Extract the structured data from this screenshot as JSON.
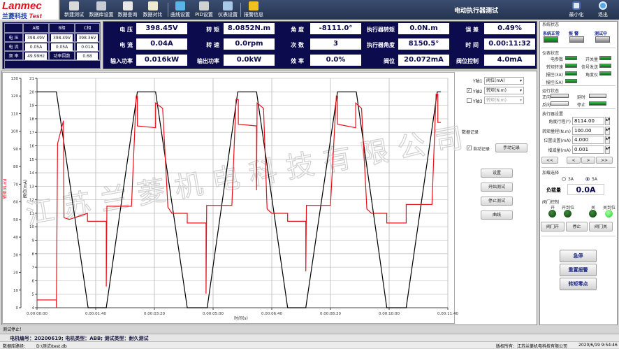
{
  "logo": {
    "brand": "Lanmec",
    "reg": "®",
    "cn": "兰菱科技",
    "test": "Test"
  },
  "toolbar": {
    "items": [
      {
        "label": "新建测试",
        "icon": "new-test-icon",
        "color": "#d8d8d8"
      },
      {
        "label": "数据库设置",
        "icon": "database-settings-icon",
        "color": "#c8ccd4"
      },
      {
        "label": "数据查询",
        "icon": "data-query-icon",
        "color": "#e8e8e8"
      },
      {
        "label": "数据对比",
        "icon": "data-compare-icon",
        "color": "#f0e8d0"
      },
      {
        "label": "曲线设置",
        "icon": "curve-settings-icon",
        "color": "#5ab4e8"
      },
      {
        "label": "PID设置",
        "icon": "pid-settings-icon",
        "color": "#d0d0d0"
      },
      {
        "label": "仪表设置",
        "icon": "meter-settings-icon",
        "color": "#a8c8e8"
      },
      {
        "label": "报警信息",
        "icon": "alarm-warning-icon",
        "color": "#f0c020"
      }
    ]
  },
  "app_title": "电动执行器测试",
  "window": {
    "minimize": "最小化",
    "exit": "退出"
  },
  "phase_table": {
    "headers": [
      "A相",
      "B相",
      "C相"
    ],
    "rows": [
      {
        "label": "电 压",
        "values": [
          "398.49V",
          "398.49V",
          "398.36V"
        ]
      },
      {
        "label": "电 流",
        "values": [
          "0.05A",
          "0.05A",
          "0.01A"
        ]
      },
      {
        "label": "频 率",
        "values": [
          "49.99Hz",
          "功率因数",
          "0.68"
        ]
      }
    ]
  },
  "metrics": [
    [
      {
        "label": "电 压",
        "value": "398.45V"
      },
      {
        "label": "转 矩",
        "value": "8.0852N.m"
      },
      {
        "label": "角 度",
        "value": "-8111.0°"
      },
      {
        "label": "执行器转矩",
        "value": "0.0N.m"
      },
      {
        "label": "误 差",
        "value": "0.49%"
      }
    ],
    [
      {
        "label": "电 流",
        "value": "0.04A"
      },
      {
        "label": "转 速",
        "value": "0.0rpm"
      },
      {
        "label": "次 数",
        "value": "3"
      },
      {
        "label": "执行器角度",
        "value": "8150.5°"
      },
      {
        "label": "时 间",
        "value": "0.00:11:32"
      }
    ],
    [
      {
        "label": "输入功率",
        "value": "0.016kW"
      },
      {
        "label": "输出功率",
        "value": "0.0kW"
      },
      {
        "label": "效 率",
        "value": "0.0%"
      },
      {
        "label": "阀位",
        "value": "20.072mA"
      },
      {
        "label": "阀位控制",
        "value": "4.0mA"
      }
    ]
  ],
  "chart_controls": {
    "y1": {
      "label": "Y轴1",
      "value": "阀位(mA)"
    },
    "y2": {
      "label": "Y轴2",
      "value": "转矩(N.m)",
      "checked": true
    },
    "y3": {
      "label": "Y轴3",
      "value": "转矩(N.m)",
      "checked": false
    },
    "record_title": "数据记录",
    "auto_record": "自动记录",
    "auto_checked": true,
    "manual_record": "手动记录",
    "buttons": [
      "设置",
      "开始测试",
      "停止测试",
      "曲线"
    ]
  },
  "chart_data": {
    "type": "line",
    "xlabel": "时间(s)",
    "xlim": [
      0,
      700
    ],
    "xticks": [
      0,
      100,
      200,
      300,
      400,
      500,
      600,
      700
    ],
    "xtick_labels": [
      "0.00:00:00",
      "0.00:01:40",
      "0.00:03:20",
      "0.00:05:00",
      "0.00:06:40",
      "0.00:08:20",
      "0.00:10:00",
      "0.00:11:40"
    ],
    "grid": true,
    "axes": [
      {
        "label": "转矩(N.m)",
        "color": "#e8101a",
        "ylim": [
          0,
          130
        ],
        "ticks": [
          0,
          10,
          20,
          30,
          40,
          50,
          60,
          70,
          80,
          90,
          100,
          110,
          120,
          130
        ]
      },
      {
        "label": "阀位(mA)",
        "color": "#000000",
        "ylim": [
          4,
          21
        ],
        "ticks": [
          4,
          5,
          6,
          7,
          8,
          9,
          10,
          11,
          12,
          13,
          14,
          15,
          16,
          17,
          18,
          19,
          20,
          21
        ]
      }
    ],
    "series": [
      {
        "axis": 1,
        "color": "#000000",
        "points": [
          [
            0,
            20
          ],
          [
            33,
            20
          ],
          [
            87,
            4
          ],
          [
            118,
            4
          ],
          [
            171,
            20
          ],
          [
            202,
            20
          ],
          [
            256,
            4
          ],
          [
            290,
            4
          ],
          [
            342,
            20
          ],
          [
            374,
            20
          ],
          [
            427,
            4
          ],
          [
            458,
            4
          ],
          [
            512,
            20
          ],
          [
            544,
            20
          ],
          [
            596,
            4
          ],
          [
            629,
            4
          ],
          [
            682,
            20
          ],
          [
            688,
            20
          ]
        ]
      },
      {
        "axis": 0,
        "color": "#e8101a",
        "points": [
          [
            0,
            4.4
          ],
          [
            33,
            4.4
          ],
          [
            33,
            0
          ],
          [
            35,
            93
          ],
          [
            45,
            106
          ],
          [
            46,
            51
          ],
          [
            55,
            50
          ],
          [
            86,
            53.5
          ],
          [
            86,
            49
          ],
          [
            118,
            49
          ],
          [
            118,
            12
          ],
          [
            119,
            57.5
          ],
          [
            161,
            57.5
          ],
          [
            169,
            120
          ],
          [
            171,
            120
          ],
          [
            171,
            103
          ],
          [
            202,
            102
          ],
          [
            202,
            116
          ],
          [
            214,
            113
          ],
          [
            223,
            57
          ],
          [
            230,
            53.5
          ],
          [
            256,
            53.5
          ],
          [
            256,
            48
          ],
          [
            288,
            48
          ],
          [
            288,
            8
          ],
          [
            289,
            58
          ],
          [
            332,
            58
          ],
          [
            339,
            118
          ],
          [
            343,
            118
          ],
          [
            343,
            104
          ],
          [
            374,
            103
          ],
          [
            374,
            66.6
          ],
          [
            375,
            116
          ],
          [
            386,
            113
          ],
          [
            392,
            56
          ],
          [
            400,
            53.5
          ],
          [
            427,
            53.5
          ],
          [
            427,
            49
          ],
          [
            458,
            49
          ],
          [
            458,
            20.6
          ],
          [
            459,
            58
          ],
          [
            500,
            58
          ],
          [
            510,
            120
          ],
          [
            512,
            120
          ],
          [
            512,
            104
          ],
          [
            543,
            102
          ],
          [
            543,
            116
          ],
          [
            553,
            113
          ],
          [
            562,
            56
          ],
          [
            570,
            53.5
          ],
          [
            596,
            53.5
          ],
          [
            596,
            48
          ],
          [
            629,
            48
          ],
          [
            629,
            58.5
          ],
          [
            673,
            58.5
          ],
          [
            680,
            121
          ],
          [
            683,
            121
          ],
          [
            683,
            105
          ],
          [
            688,
            105
          ]
        ]
      }
    ]
  },
  "watermark": "江苏兰菱机电科技有限公司",
  "right_panel": {
    "system_status": {
      "title": "系统状态",
      "items": [
        {
          "label": "系统正常",
          "on": true
        },
        {
          "label": "报 警",
          "on": false
        },
        {
          "label": "测试中",
          "on": false
        }
      ]
    },
    "meter_status": {
      "title": "仪表状态",
      "items": [
        {
          "label": "电参数",
          "on": true
        },
        {
          "label": "开关量",
          "on": true
        },
        {
          "label": "转矩转速",
          "on": true
        },
        {
          "label": "信号发送",
          "on": true
        },
        {
          "label": "报控(3A)",
          "on": true
        },
        {
          "label": "角度仪",
          "on": true
        },
        {
          "label": "报控(5A)",
          "on": true
        }
      ]
    },
    "run_status": {
      "title": "运行状态",
      "items": [
        {
          "label": "正向",
          "on": false
        },
        {
          "label": "延时",
          "on": false
        },
        {
          "label": "反向",
          "on": false
        },
        {
          "label": "停止",
          "on": true
        }
      ]
    },
    "actuator": {
      "title": "执行器设置",
      "fields": [
        {
          "label": "角度行程(°)",
          "value": "8114.00"
        },
        {
          "label": "转矩量程(N.m)",
          "value": "100.00"
        },
        {
          "label": "位置设置(mA)",
          "value": "4.000"
        },
        {
          "label": "增减量(mA)",
          "value": "0.001"
        }
      ],
      "nav": [
        "<<",
        "<",
        ">",
        ">>"
      ]
    },
    "load": {
      "title": "加载选择",
      "options": [
        "3A",
        "5A"
      ],
      "selected": "5A",
      "amount_label": "负载量",
      "amount": "0.0A"
    },
    "valve": {
      "title": "阀门控制",
      "leds": [
        {
          "label": "开",
          "on": false
        },
        {
          "label": "开到位",
          "on": false
        },
        {
          "label": "关",
          "on": false
        },
        {
          "label": "关到位",
          "on": true
        }
      ],
      "buttons": [
        "阀门开",
        "停止",
        "阀门关"
      ]
    },
    "actions": [
      "急停",
      "重置报警",
      "转矩零点"
    ]
  },
  "status": {
    "message": "测试停止！",
    "info": "电机编号：20200619;  电机类型：ABB;  测试类型：耐久测试",
    "db_label": "数据库路径：",
    "db_path": "D:\\测试\\test.db",
    "copyright": "版权所有：江苏兰菱机电科技有限公司",
    "datetime": "2020/6/19 9:54:46"
  }
}
